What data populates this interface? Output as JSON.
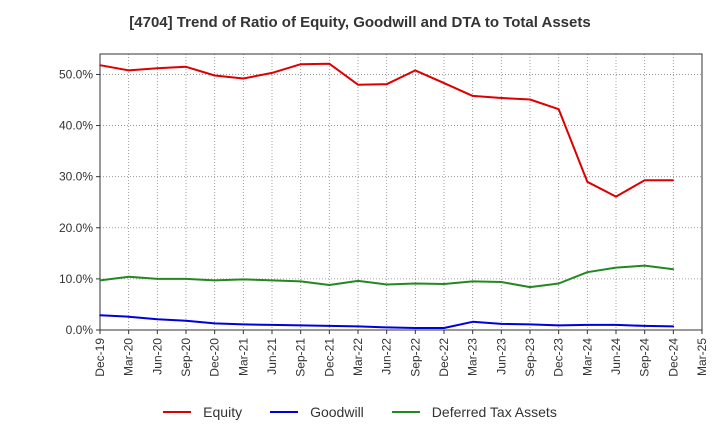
{
  "chart_data": {
    "type": "line",
    "title": "[4704]  Trend of Ratio of Equity, Goodwill and DTA to Total Assets",
    "xlabel": "",
    "ylabel": "",
    "ylim": [
      0,
      54
    ],
    "yticks": [
      0,
      10,
      20,
      30,
      40,
      50
    ],
    "ytick_labels": [
      "0.0%",
      "10.0%",
      "20.0%",
      "30.0%",
      "40.0%",
      "50.0%"
    ],
    "x_axis_labels": [
      "Dec-19",
      "Mar-20",
      "Jun-20",
      "Sep-20",
      "Dec-20",
      "Mar-21",
      "Jun-21",
      "Sep-21",
      "Dec-21",
      "Mar-22",
      "Jun-22",
      "Sep-22",
      "Dec-22",
      "Mar-23",
      "Jun-23",
      "Sep-23",
      "Dec-23",
      "Mar-24",
      "Jun-24",
      "Sep-24",
      "Dec-24",
      "Mar-25"
    ],
    "categories": [
      "Dec-19",
      "Mar-20",
      "Jun-20",
      "Sep-20",
      "Dec-20",
      "Mar-21",
      "Jun-21",
      "Sep-21",
      "Dec-21",
      "Mar-22",
      "Jun-22",
      "Sep-22",
      "Dec-22",
      "Mar-23",
      "Jun-23",
      "Sep-23",
      "Dec-23",
      "Mar-24",
      "Jun-24",
      "Sep-24",
      "Dec-24"
    ],
    "grid": true,
    "legend_position": "bottom",
    "series": [
      {
        "name": "Equity",
        "color": "#dd0000",
        "values": [
          51.8,
          50.8,
          51.2,
          51.5,
          49.8,
          49.2,
          50.3,
          52.0,
          52.1,
          48.0,
          48.1,
          50.8,
          48.3,
          45.8,
          45.4,
          45.1,
          43.2,
          29.0,
          26.1,
          29.3,
          29.3
        ]
      },
      {
        "name": "Goodwill",
        "color": "#0000dd",
        "values": [
          2.9,
          2.6,
          2.1,
          1.8,
          1.3,
          1.1,
          1.0,
          0.9,
          0.8,
          0.7,
          0.5,
          0.4,
          0.4,
          1.6,
          1.2,
          1.1,
          0.9,
          1.0,
          1.0,
          0.8,
          0.7
        ]
      },
      {
        "name": "Deferred Tax Assets",
        "color": "#228822",
        "values": [
          9.7,
          10.4,
          10.0,
          10.0,
          9.7,
          9.9,
          9.7,
          9.5,
          8.8,
          9.6,
          8.9,
          9.1,
          9.0,
          9.5,
          9.4,
          8.4,
          9.1,
          11.3,
          12.2,
          12.6,
          11.9
        ]
      }
    ]
  }
}
